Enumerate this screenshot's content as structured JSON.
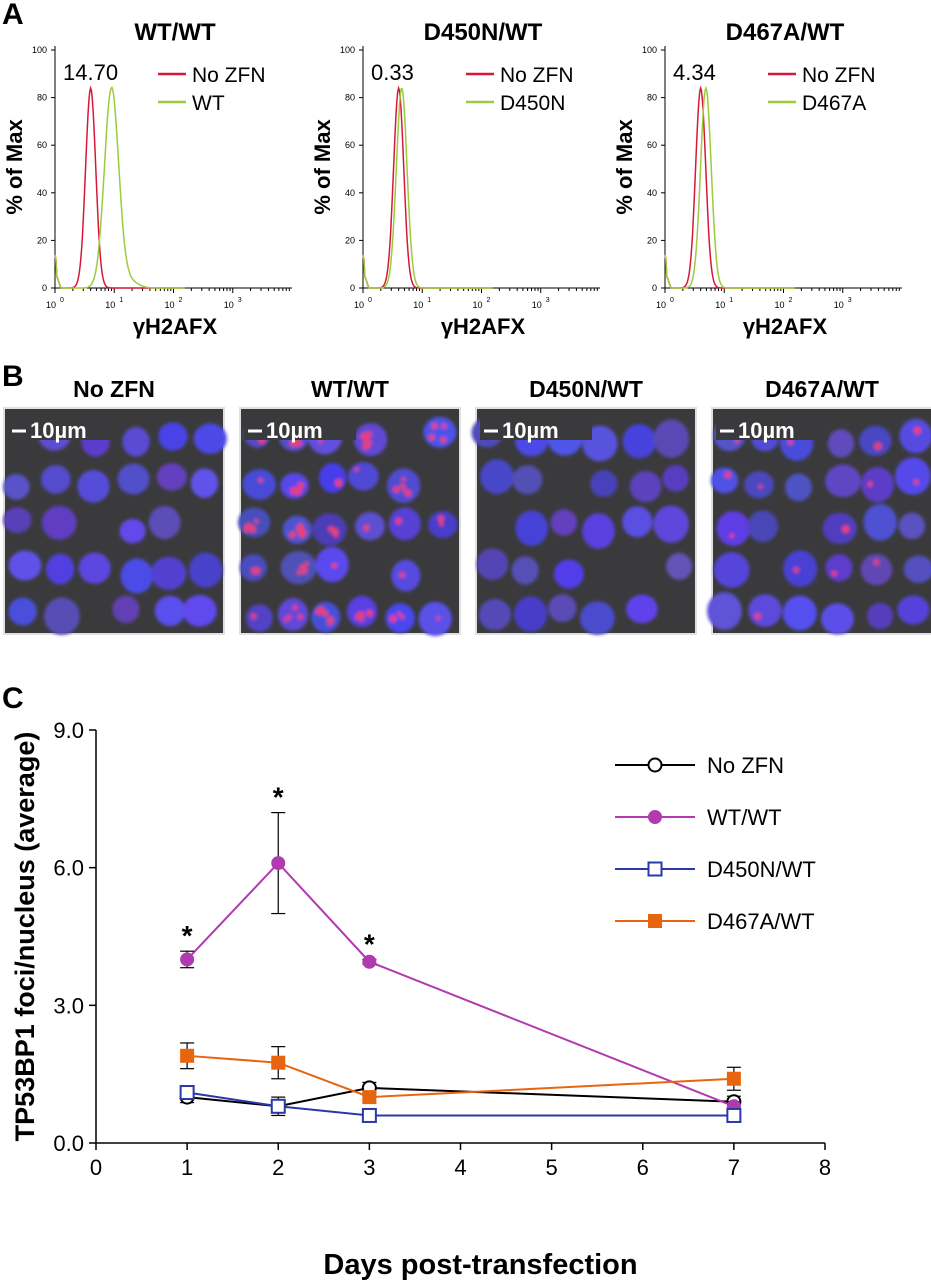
{
  "panels": {
    "a": "A",
    "b": "B",
    "c": "C"
  },
  "panel_a": [
    {
      "title": "WT/WT",
      "value": "14.70",
      "legend": [
        "No ZFN",
        "WT"
      ],
      "shift": 5.0
    },
    {
      "title": "D450N/WT",
      "value": "0.33",
      "legend": [
        "No ZFN",
        "D450N"
      ],
      "shift": 0.5
    },
    {
      "title": "D467A/WT",
      "value": "4.34",
      "legend": [
        "No ZFN",
        "D467A"
      ],
      "shift": 0.9
    }
  ],
  "hist_axis": {
    "ylabel": "% of Max",
    "xlabel": "γH2AFX",
    "yticks": [
      "0",
      "20",
      "40",
      "60",
      "80",
      "100"
    ],
    "xticks": [
      "10",
      "10",
      "10",
      "10"
    ],
    "xtick_exp": [
      "0",
      "1",
      "2",
      "3"
    ]
  },
  "panel_b": {
    "titles": [
      "No ZFN",
      "WT/WT",
      "D450N/WT",
      "D467A/WT"
    ],
    "scalebar": "10µm",
    "foci_level": [
      1,
      6,
      1,
      2
    ]
  },
  "colors": {
    "red": "#d6193a",
    "green": "#9ccc3c",
    "black": "#000000",
    "magenta": "#b03ab0",
    "blue": "#2a38a8",
    "orange": "#e8650f"
  },
  "chart_data": {
    "type": "line",
    "ylabel": "TP53BP1 foci/nucleus (average)",
    "xlabel": "Days post-transfection",
    "xlim": [
      0,
      8
    ],
    "ylim": [
      0,
      9
    ],
    "xticks": [
      "0",
      "1",
      "2",
      "3",
      "4",
      "5",
      "6",
      "7",
      "8"
    ],
    "yticks": [
      "0.0",
      "3.0",
      "6.0",
      "9.0"
    ],
    "series": [
      {
        "name": "No ZFN",
        "x": [
          1,
          2,
          3,
          7
        ],
        "y": [
          1.0,
          0.8,
          1.2,
          0.9
        ],
        "err": [
          0.12,
          0.2,
          0.12,
          0.12
        ],
        "marker": "open-circle",
        "color": "#000000"
      },
      {
        "name": "WT/WT",
        "x": [
          1,
          2,
          3,
          7
        ],
        "y": [
          4.0,
          6.1,
          3.95,
          0.8
        ],
        "err": [
          0.18,
          1.1,
          0.05,
          0.1
        ],
        "marker": "filled-circle",
        "color": "#b03ab0"
      },
      {
        "name": "D450N/WT",
        "x": [
          1,
          2,
          3,
          7
        ],
        "y": [
          1.1,
          0.8,
          0.6,
          0.6
        ],
        "err": [
          0.05,
          0.05,
          0.05,
          0.05
        ],
        "marker": "open-square",
        "color": "#2a38a8"
      },
      {
        "name": "D467A/WT",
        "x": [
          1,
          2,
          3,
          7
        ],
        "y": [
          1.9,
          1.75,
          1.0,
          1.4
        ],
        "err": [
          0.28,
          0.35,
          0.12,
          0.25
        ],
        "marker": "filled-square",
        "color": "#e8650f"
      }
    ],
    "annotations": [
      {
        "x": 1,
        "y": 4.0,
        "text": "*"
      },
      {
        "x": 2,
        "y": 6.1,
        "text": "*"
      },
      {
        "x": 3,
        "y": 3.95,
        "text": "*"
      }
    ],
    "legend": "top-right"
  }
}
